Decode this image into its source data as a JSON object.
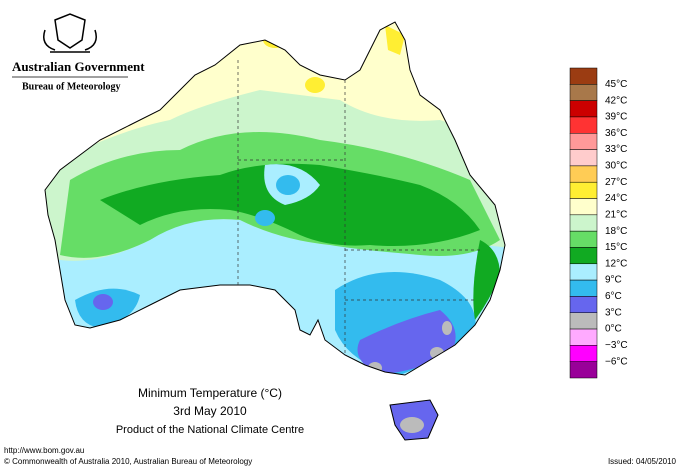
{
  "header": {
    "government": "Australian Government",
    "agency": "Bureau of Meteorology"
  },
  "map": {
    "title": "Minimum Temperature (°C)",
    "date": "3rd May 2010",
    "credit": "Product of the National Climate Centre"
  },
  "legend": {
    "labels": [
      "45°C",
      "42°C",
      "39°C",
      "36°C",
      "33°C",
      "30°C",
      "27°C",
      "24°C",
      "21°C",
      "18°C",
      "15°C",
      "12°C",
      "9°C",
      "6°C",
      "3°C",
      "0°C",
      "−3°C",
      "−6°C"
    ],
    "swatch_colors": [
      "#9b3c12",
      "#a8784a",
      "#cc0000",
      "#ff3333",
      "#ff9999",
      "#ffcccc",
      "#ffcc55",
      "#ffee33",
      "#ffffcc",
      "#ccf5cc",
      "#66dd66",
      "#11aa22",
      "#aaeeff",
      "#33bbee",
      "#6666ee",
      "#bbbbbb",
      "#ffaaff",
      "#ff00ff",
      "#990099"
    ]
  },
  "footer": {
    "url": "http://www.bom.gov.au",
    "copyright": "© Commonwealth of Australia 2010, Australian Bureau of Meteorology",
    "issued": "Issued: 04/05/2010"
  }
}
